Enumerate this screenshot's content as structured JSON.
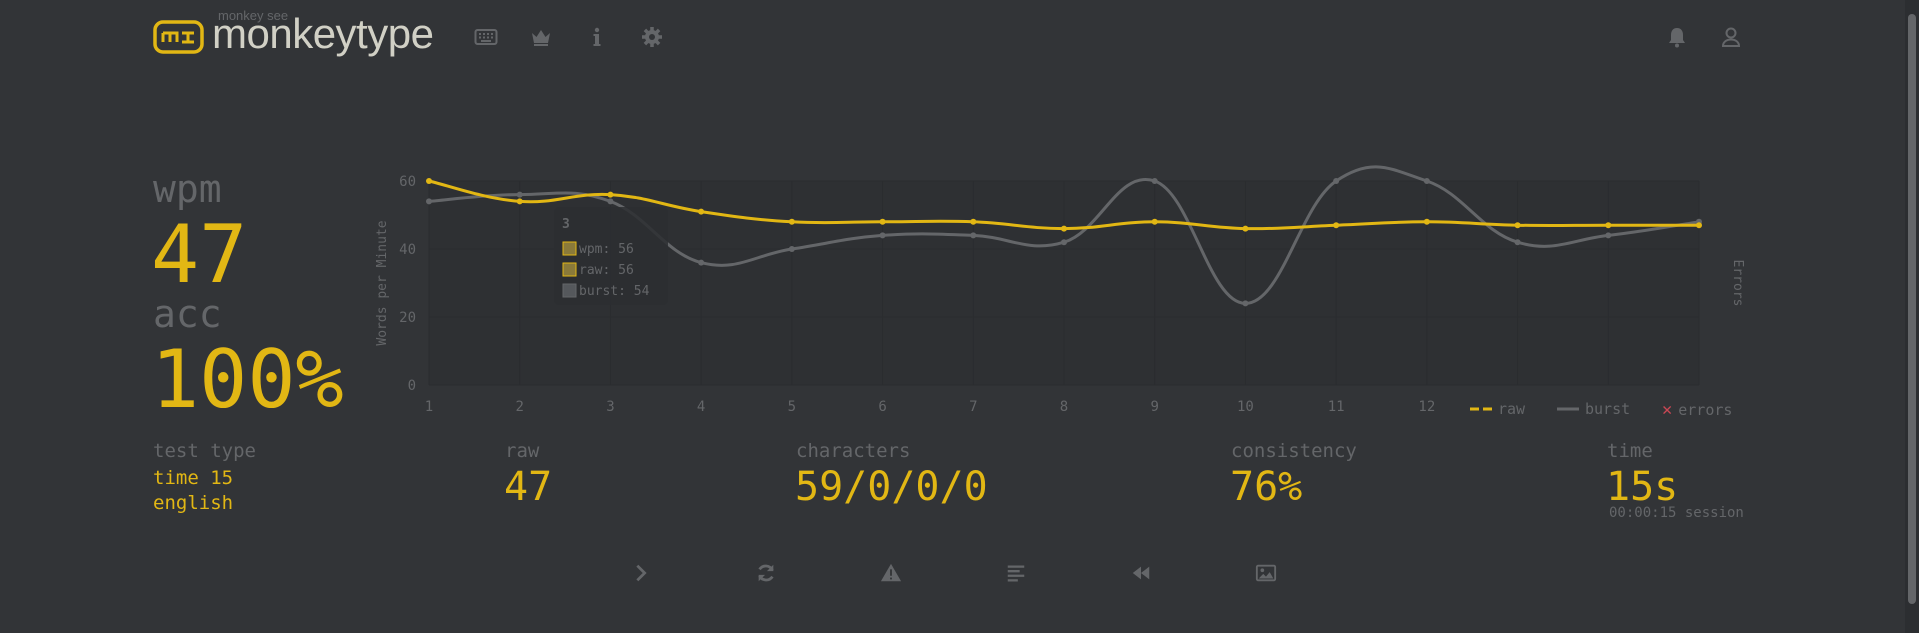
{
  "header": {
    "logo_top": "monkey see",
    "logo_text": "monkeytype"
  },
  "colors": {
    "bg": "#323437",
    "main": "#e2b714",
    "sub": "#646669",
    "text": "#d1d0c5",
    "error": "#ca4754"
  },
  "stats": {
    "wpm_label": "wpm",
    "wpm_value": "47",
    "acc_label": "acc",
    "acc_value": "100%",
    "test_type_label": "test type",
    "test_type_line1": "time 15",
    "test_type_line2": "english",
    "raw_label": "raw",
    "raw_value": "47",
    "characters_label": "characters",
    "characters_value": "59/0/0/0",
    "consistency_label": "consistency",
    "consistency_value": "76%",
    "time_label": "time",
    "time_value": "15s",
    "time_session": "00:00:15 session"
  },
  "chart_data": {
    "type": "line",
    "ylabel": "Words per Minute",
    "y2label": "Errors",
    "ylim": [
      0,
      60
    ],
    "yticks": [
      "0",
      "20",
      "40",
      "60"
    ],
    "x": [
      1,
      2,
      3,
      4,
      5,
      6,
      7,
      8,
      9,
      10,
      11,
      12,
      13,
      14,
      15
    ],
    "xticks": [
      "1",
      "2",
      "3",
      "4",
      "5",
      "6",
      "7",
      "8",
      "9",
      "10",
      "11",
      "12"
    ],
    "series": [
      {
        "name": "raw",
        "color": "#e2b714",
        "values": [
          60,
          54,
          56,
          51,
          48,
          48,
          48,
          46,
          48,
          46,
          47,
          48,
          47,
          47,
          47
        ]
      },
      {
        "name": "burst",
        "color": "#646669",
        "values": [
          54,
          56,
          54,
          36,
          40,
          44,
          44,
          42,
          60,
          24,
          60,
          60,
          42,
          44,
          48
        ]
      }
    ],
    "legend": [
      {
        "name": "raw",
        "style": "dashed-line"
      },
      {
        "name": "burst",
        "style": "line"
      },
      {
        "name": "errors",
        "style": "cross"
      }
    ],
    "tooltip": {
      "title": "3",
      "items": [
        "wpm: 56",
        "raw: 56",
        "burst: 54"
      ]
    }
  },
  "buttons": [
    "next-test-icon",
    "restart-icon",
    "report-icon",
    "words-history-icon",
    "replay-icon",
    "screenshot-icon"
  ]
}
